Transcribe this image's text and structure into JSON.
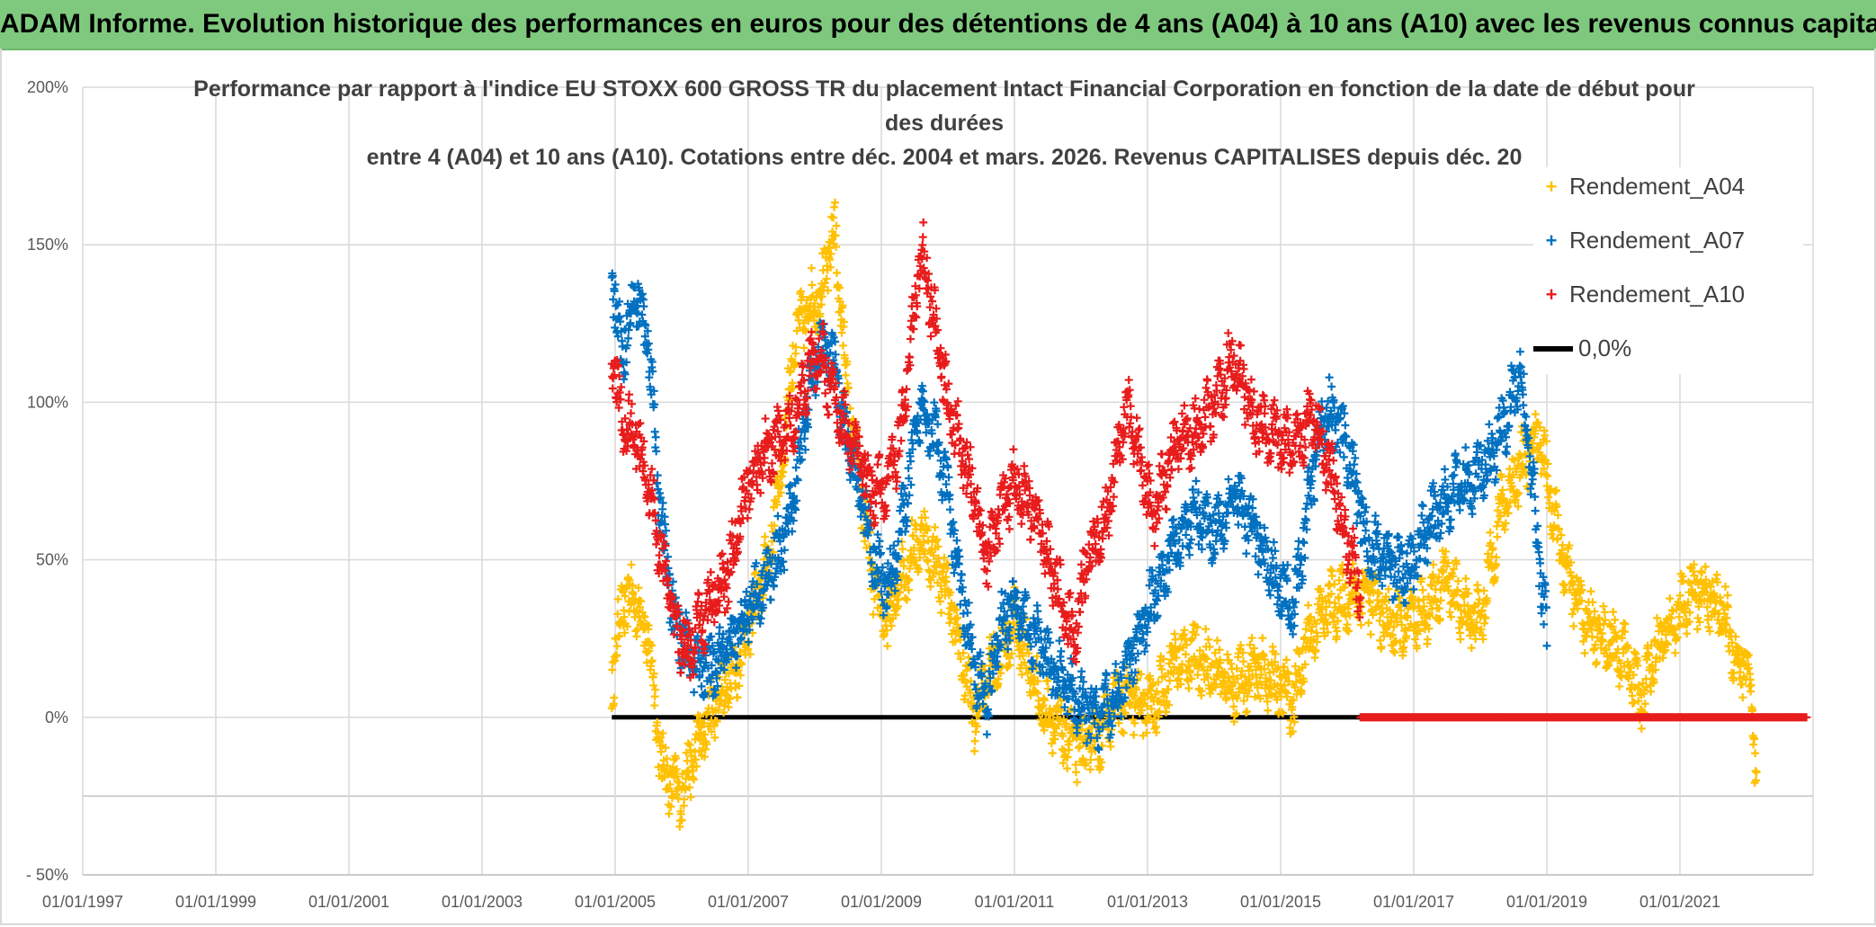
{
  "banner_title": "ADAM Informe. Evolution historique des performances en euros pour des détentions de 4 ans (A04) à 10 ans (A10) avec les revenus connus capitalisés",
  "chart_data": {
    "type": "scatter",
    "title_line1": "Performance par rapport à l'indice EU STOXX 600 GROSS TR  du placement Intact Financial Corporation en fonction de la date de début pour des durées",
    "title_line2": "entre 4 (A04) et 10 ans (A10). Cotations entre déc. 2004 et mars. 2026. Revenus CAPITALISES depuis déc. 20",
    "xlabel": "",
    "ylabel": "",
    "x_range": [
      1997.0,
      2023.0
    ],
    "ylim": [
      -50,
      200
    ],
    "y_ticks": [
      -50,
      0,
      50,
      100,
      150,
      200
    ],
    "y_tick_labels": [
      "- 50%",
      "0%",
      "50%",
      "100%",
      "150%",
      "200%"
    ],
    "extra_gridline": -25,
    "x_ticks": [
      1997,
      1999,
      2001,
      2003,
      2005,
      2007,
      2009,
      2011,
      2013,
      2015,
      2017,
      2019,
      2021
    ],
    "x_tick_labels": [
      "01/01/1997",
      "01/01/1999",
      "01/01/2001",
      "01/01/2003",
      "01/01/2005",
      "01/01/2007",
      "01/01/2009",
      "01/01/2011",
      "01/01/2013",
      "01/01/2015",
      "01/01/2017",
      "01/01/2019",
      "01/01/2021"
    ],
    "legend_position": "top-right",
    "series": [
      {
        "name": "Rendement_A04",
        "color": "#ffc000",
        "x_start": 2004.95,
        "x_end": 2022.15,
        "anchors": [
          [
            2004.95,
            12
          ],
          [
            2005.1,
            35
          ],
          [
            2005.3,
            38
          ],
          [
            2005.5,
            25
          ],
          [
            2005.7,
            -15
          ],
          [
            2005.95,
            -25
          ],
          [
            2006.2,
            -12
          ],
          [
            2006.5,
            5
          ],
          [
            2006.8,
            15
          ],
          [
            2007.1,
            35
          ],
          [
            2007.3,
            50
          ],
          [
            2007.5,
            80
          ],
          [
            2007.7,
            120
          ],
          [
            2007.9,
            130
          ],
          [
            2008.1,
            135
          ],
          [
            2008.3,
            155
          ],
          [
            2008.5,
            100
          ],
          [
            2008.7,
            70
          ],
          [
            2008.9,
            40
          ],
          [
            2009.1,
            30
          ],
          [
            2009.3,
            45
          ],
          [
            2009.6,
            58
          ],
          [
            2009.8,
            50
          ],
          [
            2010.0,
            40
          ],
          [
            2010.2,
            20
          ],
          [
            2010.4,
            0
          ],
          [
            2010.6,
            15
          ],
          [
            2010.8,
            20
          ],
          [
            2011.0,
            30
          ],
          [
            2011.2,
            18
          ],
          [
            2011.4,
            5
          ],
          [
            2011.7,
            -5
          ],
          [
            2012.0,
            -10
          ],
          [
            2012.3,
            -5
          ],
          [
            2012.5,
            5
          ],
          [
            2012.8,
            5
          ],
          [
            2013.1,
            3
          ],
          [
            2013.4,
            18
          ],
          [
            2013.7,
            20
          ],
          [
            2014.0,
            15
          ],
          [
            2014.3,
            10
          ],
          [
            2014.6,
            15
          ],
          [
            2014.9,
            12
          ],
          [
            2015.2,
            5
          ],
          [
            2015.4,
            25
          ],
          [
            2015.7,
            35
          ],
          [
            2016.0,
            38
          ],
          [
            2016.3,
            40
          ],
          [
            2016.6,
            30
          ],
          [
            2016.9,
            28
          ],
          [
            2017.2,
            35
          ],
          [
            2017.5,
            45
          ],
          [
            2017.7,
            35
          ],
          [
            2018.0,
            30
          ],
          [
            2018.3,
            65
          ],
          [
            2018.6,
            80
          ],
          [
            2018.9,
            90
          ],
          [
            2019.1,
            65
          ],
          [
            2019.3,
            45
          ],
          [
            2019.6,
            30
          ],
          [
            2019.9,
            25
          ],
          [
            2020.2,
            18
          ],
          [
            2020.4,
            5
          ],
          [
            2020.6,
            20
          ],
          [
            2020.9,
            30
          ],
          [
            2021.2,
            40
          ],
          [
            2021.5,
            38
          ],
          [
            2021.7,
            30
          ],
          [
            2021.9,
            15
          ],
          [
            2022.0,
            20
          ],
          [
            2022.08,
            0
          ],
          [
            2022.15,
            -20
          ]
        ]
      },
      {
        "name": "Rendement_A07",
        "color": "#0070c0",
        "x_start": 2004.95,
        "x_end": 2019.0,
        "anchors": [
          [
            2004.95,
            140
          ],
          [
            2005.1,
            115
          ],
          [
            2005.3,
            135
          ],
          [
            2005.5,
            120
          ],
          [
            2005.7,
            60
          ],
          [
            2005.9,
            30
          ],
          [
            2006.1,
            20
          ],
          [
            2006.4,
            15
          ],
          [
            2006.7,
            20
          ],
          [
            2007.0,
            35
          ],
          [
            2007.3,
            45
          ],
          [
            2007.6,
            60
          ],
          [
            2007.9,
            100
          ],
          [
            2008.1,
            120
          ],
          [
            2008.3,
            110
          ],
          [
            2008.5,
            85
          ],
          [
            2008.7,
            70
          ],
          [
            2008.9,
            50
          ],
          [
            2009.1,
            40
          ],
          [
            2009.3,
            60
          ],
          [
            2009.6,
            100
          ],
          [
            2009.8,
            90
          ],
          [
            2010.0,
            70
          ],
          [
            2010.2,
            40
          ],
          [
            2010.4,
            15
          ],
          [
            2010.6,
            5
          ],
          [
            2010.8,
            30
          ],
          [
            2011.0,
            35
          ],
          [
            2011.3,
            25
          ],
          [
            2011.6,
            15
          ],
          [
            2011.9,
            5
          ],
          [
            2012.2,
            0
          ],
          [
            2012.5,
            5
          ],
          [
            2012.8,
            20
          ],
          [
            2013.1,
            40
          ],
          [
            2013.4,
            55
          ],
          [
            2013.7,
            65
          ],
          [
            2014.0,
            60
          ],
          [
            2014.3,
            70
          ],
          [
            2014.6,
            60
          ],
          [
            2014.9,
            45
          ],
          [
            2015.2,
            35
          ],
          [
            2015.5,
            80
          ],
          [
            2015.7,
            100
          ],
          [
            2016.0,
            85
          ],
          [
            2016.3,
            55
          ],
          [
            2016.6,
            50
          ],
          [
            2016.9,
            45
          ],
          [
            2017.2,
            60
          ],
          [
            2017.5,
            70
          ],
          [
            2017.8,
            75
          ],
          [
            2018.1,
            80
          ],
          [
            2018.4,
            95
          ],
          [
            2018.6,
            110
          ],
          [
            2018.8,
            70
          ],
          [
            2019.0,
            25
          ]
        ]
      },
      {
        "name": "Rendement_A10",
        "color": "#e81c1c",
        "x_start": 2004.95,
        "x_end": 2016.2,
        "anchors": [
          [
            2004.95,
            115
          ],
          [
            2005.1,
            95
          ],
          [
            2005.3,
            90
          ],
          [
            2005.5,
            75
          ],
          [
            2005.7,
            50
          ],
          [
            2005.9,
            30
          ],
          [
            2006.1,
            20
          ],
          [
            2006.4,
            35
          ],
          [
            2006.7,
            45
          ],
          [
            2007.0,
            75
          ],
          [
            2007.3,
            85
          ],
          [
            2007.6,
            90
          ],
          [
            2007.9,
            110
          ],
          [
            2008.1,
            115
          ],
          [
            2008.3,
            100
          ],
          [
            2008.5,
            90
          ],
          [
            2008.7,
            80
          ],
          [
            2008.9,
            70
          ],
          [
            2009.1,
            75
          ],
          [
            2009.3,
            90
          ],
          [
            2009.6,
            150
          ],
          [
            2009.8,
            125
          ],
          [
            2010.0,
            100
          ],
          [
            2010.2,
            85
          ],
          [
            2010.4,
            70
          ],
          [
            2010.6,
            50
          ],
          [
            2010.8,
            65
          ],
          [
            2011.0,
            75
          ],
          [
            2011.3,
            65
          ],
          [
            2011.6,
            45
          ],
          [
            2011.9,
            25
          ],
          [
            2012.1,
            50
          ],
          [
            2012.4,
            65
          ],
          [
            2012.7,
            100
          ],
          [
            2012.9,
            80
          ],
          [
            2013.1,
            65
          ],
          [
            2013.4,
            85
          ],
          [
            2013.7,
            90
          ],
          [
            2014.0,
            100
          ],
          [
            2014.3,
            115
          ],
          [
            2014.6,
            95
          ],
          [
            2014.9,
            90
          ],
          [
            2015.2,
            85
          ],
          [
            2015.5,
            95
          ],
          [
            2015.8,
            75
          ],
          [
            2016.0,
            55
          ],
          [
            2016.2,
            40
          ]
        ]
      },
      {
        "name": "0,0%",
        "color": "#000000",
        "type": "line",
        "x_start": 2004.95,
        "x_end": 2016.2,
        "value": 0
      },
      {
        "name": "Rendement_A10 (0% segment)",
        "color": "#e81c1c",
        "type": "markers-at-zero",
        "x_start": 2016.2,
        "x_end": 2022.9,
        "value": 0
      }
    ]
  }
}
